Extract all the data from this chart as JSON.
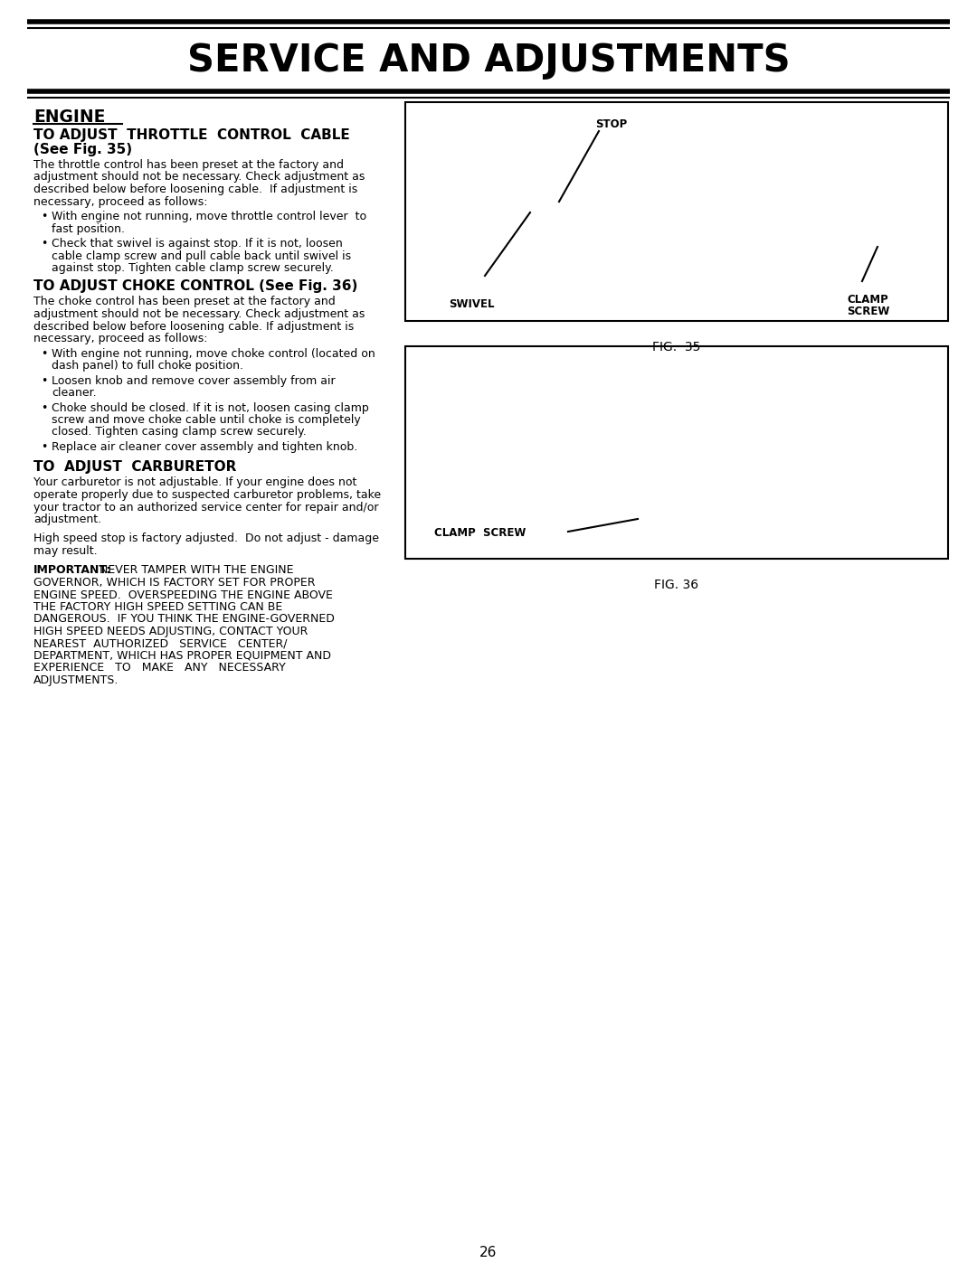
{
  "page_title": "SERVICE AND ADJUSTMENTS",
  "page_number": "26",
  "bg_color": "#ffffff",
  "section_heading": "ENGINE",
  "fig35_label": "FIG.  35",
  "fig36_label": "FIG. 36",
  "fig35_stop_label": "STOP",
  "fig35_swivel_label": "SWIVEL",
  "fig35_clamp_label_1": "CLAMP",
  "fig35_clamp_label_2": "SCREW",
  "fig36_clamp_label": "CLAMP  SCREW"
}
